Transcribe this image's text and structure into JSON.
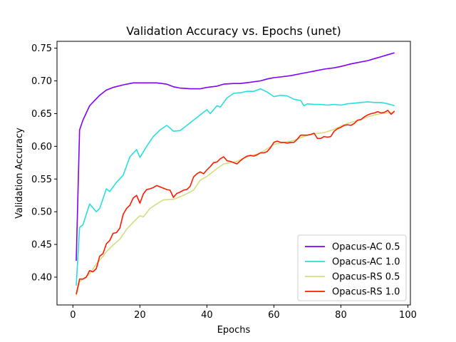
{
  "chart_data": {
    "type": "line",
    "title": "Validation Accuracy vs. Epochs (unet)",
    "xlabel": "Epochs",
    "ylabel": "Validation Accuracy",
    "xlim": [
      -4.75,
      100.75
    ],
    "ylim": [
      0.3575,
      0.7605
    ],
    "xticks": [
      0,
      20,
      40,
      60,
      80,
      100
    ],
    "yticks": [
      0.4,
      0.45,
      0.5,
      0.55,
      0.6,
      0.65,
      0.7,
      0.75
    ],
    "grid": false,
    "legend_position": "lower-right",
    "series": [
      {
        "name": "Opacus-AC 0.5",
        "color": "#8000ff",
        "x": [
          1,
          2,
          3,
          5,
          8,
          10,
          12,
          15,
          18,
          21,
          25,
          28,
          30,
          32,
          35,
          38,
          40,
          43,
          45,
          48,
          50,
          53,
          56,
          58,
          60,
          62,
          65,
          68,
          70,
          72,
          75,
          78,
          80,
          83,
          85,
          88,
          90,
          92,
          94,
          96
        ],
        "y": [
          0.425,
          0.625,
          0.64,
          0.662,
          0.678,
          0.686,
          0.69,
          0.694,
          0.697,
          0.697,
          0.697,
          0.695,
          0.691,
          0.689,
          0.688,
          0.688,
          0.69,
          0.692,
          0.695,
          0.696,
          0.696,
          0.698,
          0.7,
          0.703,
          0.705,
          0.706,
          0.708,
          0.711,
          0.713,
          0.715,
          0.718,
          0.72,
          0.722,
          0.726,
          0.728,
          0.731,
          0.734,
          0.737,
          0.74,
          0.743
        ]
      },
      {
        "name": "Opacus-AC 1.0",
        "color": "#2adddd",
        "x": [
          1,
          2,
          3,
          5,
          7,
          8,
          10,
          11,
          13,
          15,
          17,
          19,
          20,
          22,
          24,
          26,
          28,
          29,
          30,
          32,
          34,
          36,
          38,
          40,
          41,
          43,
          44,
          46,
          48,
          50,
          52,
          54,
          55,
          56,
          58,
          60,
          62,
          64,
          66,
          68,
          69,
          70,
          72,
          74,
          76,
          78,
          80,
          82,
          84,
          86,
          88,
          90,
          92,
          94,
          96
        ],
        "y": [
          0.387,
          0.476,
          0.48,
          0.512,
          0.5,
          0.505,
          0.535,
          0.531,
          0.545,
          0.556,
          0.584,
          0.595,
          0.583,
          0.6,
          0.615,
          0.625,
          0.632,
          0.628,
          0.623,
          0.624,
          0.632,
          0.64,
          0.648,
          0.656,
          0.65,
          0.662,
          0.66,
          0.674,
          0.681,
          0.682,
          0.684,
          0.684,
          0.686,
          0.688,
          0.683,
          0.676,
          0.678,
          0.677,
          0.672,
          0.67,
          0.662,
          0.665,
          0.664,
          0.664,
          0.663,
          0.664,
          0.663,
          0.665,
          0.666,
          0.667,
          0.668,
          0.667,
          0.667,
          0.665,
          0.662
        ]
      },
      {
        "name": "Opacus-RS 0.5",
        "color": "#d4dd80",
        "x": [
          1,
          2,
          3,
          5,
          7,
          9,
          10,
          12,
          14,
          16,
          18,
          20,
          21,
          23,
          25,
          27,
          30,
          33,
          36,
          38,
          40,
          43,
          45,
          47,
          49,
          51,
          53,
          55,
          57,
          60,
          62,
          64,
          66,
          68,
          70,
          72,
          75,
          78,
          80,
          82,
          84,
          86,
          88,
          90,
          92,
          94,
          96
        ],
        "y": [
          0.372,
          0.393,
          0.397,
          0.405,
          0.42,
          0.432,
          0.439,
          0.449,
          0.458,
          0.473,
          0.484,
          0.494,
          0.492,
          0.505,
          0.512,
          0.518,
          0.519,
          0.525,
          0.533,
          0.548,
          0.554,
          0.566,
          0.573,
          0.575,
          0.577,
          0.582,
          0.586,
          0.588,
          0.593,
          0.603,
          0.605,
          0.607,
          0.609,
          0.613,
          0.617,
          0.619,
          0.621,
          0.626,
          0.631,
          0.635,
          0.638,
          0.641,
          0.645,
          0.648,
          0.65,
          0.651,
          0.652
        ]
      },
      {
        "name": "Opacus-RS 1.0",
        "color": "#ff1a00",
        "x": [
          1,
          2,
          3,
          4,
          5,
          6,
          7,
          8,
          9,
          10,
          11,
          12,
          13,
          14,
          15,
          16,
          17,
          18,
          19,
          20,
          21,
          22,
          23,
          24,
          25,
          26,
          27,
          28,
          29,
          30,
          31,
          32,
          33,
          34,
          35,
          36,
          37,
          38,
          39,
          40,
          41,
          42,
          43,
          44,
          45,
          46,
          47,
          48,
          49,
          50,
          51,
          52,
          53,
          54,
          55,
          56,
          57,
          58,
          59,
          60,
          61,
          62,
          63,
          64,
          65,
          66,
          67,
          68,
          69,
          70,
          71,
          72,
          73,
          74,
          75,
          76,
          77,
          78,
          79,
          80,
          81,
          82,
          83,
          84,
          85,
          86,
          87,
          88,
          89,
          90,
          91,
          92,
          93,
          94,
          95,
          96
        ],
        "y": [
          0.374,
          0.397,
          0.397,
          0.4,
          0.41,
          0.408,
          0.413,
          0.432,
          0.436,
          0.451,
          0.456,
          0.467,
          0.468,
          0.475,
          0.496,
          0.505,
          0.51,
          0.521,
          0.525,
          0.513,
          0.527,
          0.534,
          0.535,
          0.537,
          0.54,
          0.538,
          0.536,
          0.534,
          0.533,
          0.522,
          0.528,
          0.53,
          0.533,
          0.534,
          0.539,
          0.553,
          0.558,
          0.561,
          0.558,
          0.564,
          0.569,
          0.575,
          0.576,
          0.581,
          0.584,
          0.578,
          0.577,
          0.575,
          0.573,
          0.578,
          0.582,
          0.585,
          0.586,
          0.585,
          0.587,
          0.59,
          0.59,
          0.592,
          0.598,
          0.606,
          0.608,
          0.606,
          0.606,
          0.605,
          0.606,
          0.606,
          0.611,
          0.617,
          0.617,
          0.617,
          0.618,
          0.62,
          0.612,
          0.612,
          0.615,
          0.614,
          0.615,
          0.623,
          0.627,
          0.629,
          0.632,
          0.633,
          0.632,
          0.635,
          0.64,
          0.641,
          0.645,
          0.648,
          0.65,
          0.651,
          0.653,
          0.651,
          0.652,
          0.655,
          0.649,
          0.654
        ]
      }
    ]
  }
}
